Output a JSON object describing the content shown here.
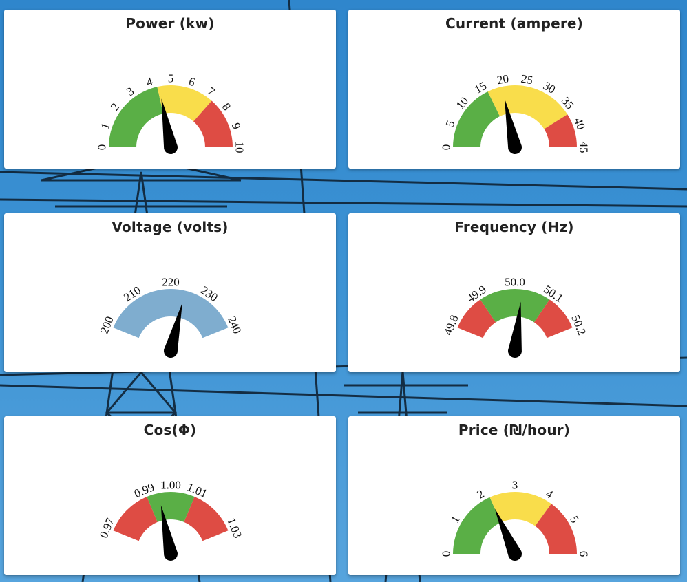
{
  "colors": {
    "green": "#5aaf46",
    "yellow": "#f9dd4b",
    "red": "#de4c44",
    "blue": "#7fadcf",
    "needle": "#000000",
    "sky": "#3a8ed0"
  },
  "gauges": [
    {
      "id": "power",
      "title": "Power (kw)",
      "min": 0,
      "max": 10,
      "sweep": 180,
      "ticks": [
        "0",
        "1",
        "2",
        "3",
        "4",
        "5",
        "6",
        "7",
        "8",
        "9",
        "10"
      ],
      "bands": [
        {
          "from": 0,
          "to": 4.3,
          "color": "green"
        },
        {
          "from": 4.3,
          "to": 7.3,
          "color": "yellow"
        },
        {
          "from": 7.3,
          "to": 10,
          "color": "red"
        }
      ],
      "value": 4.4
    },
    {
      "id": "current",
      "title": "Current (ampere)",
      "min": 0,
      "max": 45,
      "sweep": 180,
      "ticks": [
        "0",
        "5",
        "10",
        "15",
        "20",
        "25",
        "30",
        "35",
        "40",
        "45"
      ],
      "bands": [
        {
          "from": 0,
          "to": 16,
          "color": "green"
        },
        {
          "from": 16,
          "to": 37,
          "color": "yellow"
        },
        {
          "from": 37,
          "to": 45,
          "color": "red"
        }
      ],
      "value": 19.5
    },
    {
      "id": "voltage",
      "title": "Voltage (volts)",
      "min": 200,
      "max": 240,
      "sweep": 136,
      "ticks": [
        "200",
        "210",
        "220",
        "230",
        "240"
      ],
      "bands": [
        {
          "from": 200,
          "to": 240,
          "color": "blue"
        }
      ],
      "value": 224
    },
    {
      "id": "frequency",
      "title": "Frequency (Hz)",
      "min": 49.8,
      "max": 50.2,
      "sweep": 136,
      "ticks": [
        "49.8",
        "49.9",
        "50.0",
        "50.1",
        "50.2"
      ],
      "bands": [
        {
          "from": 49.8,
          "to": 49.9,
          "color": "red"
        },
        {
          "from": 49.9,
          "to": 50.1,
          "color": "green"
        },
        {
          "from": 50.1,
          "to": 50.2,
          "color": "red"
        }
      ],
      "value": 50.02
    },
    {
      "id": "cosphi",
      "title": "Cos(Φ)",
      "min": 0.97,
      "max": 1.03,
      "sweep": 136,
      "ticks": [
        {
          "v": 0.97,
          "t": "0.97"
        },
        {
          "v": 0.99,
          "t": "0.99"
        },
        {
          "v": 1.0,
          "t": "1.00"
        },
        {
          "v": 1.01,
          "t": "1.01"
        },
        {
          "v": 1.03,
          "t": "1.03"
        }
      ],
      "bands": [
        {
          "from": 0.97,
          "to": 0.99,
          "color": "red"
        },
        {
          "from": 0.99,
          "to": 1.01,
          "color": "green"
        },
        {
          "from": 1.01,
          "to": 1.03,
          "color": "red"
        }
      ],
      "value": 0.995
    },
    {
      "id": "price",
      "title": "Price (₪/hour)",
      "min": 0,
      "max": 6,
      "sweep": 180,
      "ticks": [
        "0",
        "1",
        "2",
        "3",
        "4",
        "5",
        "6"
      ],
      "bands": [
        {
          "from": 0,
          "to": 2.2,
          "color": "green"
        },
        {
          "from": 2.2,
          "to": 4.2,
          "color": "yellow"
        },
        {
          "from": 4.2,
          "to": 6,
          "color": "red"
        }
      ],
      "value": 2.2
    }
  ]
}
